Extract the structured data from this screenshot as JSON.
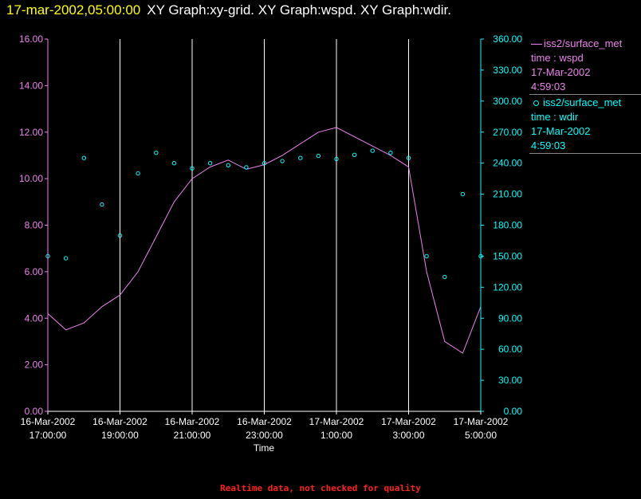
{
  "header": {
    "timestamp": "17-mar-2002,05:00:00",
    "graphs": "XY Graph:xy-grid.  XY Graph:wspd.  XY Graph:wdir."
  },
  "footer": {
    "note": "Realtime data, not checked for quality"
  },
  "legend": {
    "wspd": {
      "source": "iss2/surface_met",
      "variable": "time : wspd",
      "date": "17-Mar-2002",
      "time": "4:59:03"
    },
    "wdir": {
      "source": "iss2/surface_met",
      "variable": "time : wdir",
      "date": "17-Mar-2002",
      "time": "4:59:03"
    }
  },
  "colors": {
    "background": "#000000",
    "wspd": "#ee82ee",
    "wdir": "#00ffff",
    "grid": "#ffffff",
    "axis_left": "#ee82ee",
    "axis_right": "#00ffff"
  },
  "chart_data": {
    "type": "line",
    "xlabel": "Time",
    "xlim": [
      "2002-03-16T17:00:00",
      "2002-03-17T05:00:00"
    ],
    "x_ticks": [
      {
        "date": "16-Mar-2002",
        "time": "17:00:00"
      },
      {
        "date": "16-Mar-2002",
        "time": "19:00:00"
      },
      {
        "date": "16-Mar-2002",
        "time": "21:00:00"
      },
      {
        "date": "16-Mar-2002",
        "time": "23:00:00"
      },
      {
        "date": "17-Mar-2002",
        "time": "1:00:00"
      },
      {
        "date": "17-Mar-2002",
        "time": "3:00:00"
      },
      {
        "date": "17-Mar-2002",
        "time": "5:00:00"
      }
    ],
    "y_left": {
      "ylim": [
        0,
        16
      ],
      "ticks": [
        "0.00",
        "2.00",
        "4.00",
        "6.00",
        "8.00",
        "10.00",
        "12.00",
        "14.00",
        "16.00"
      ]
    },
    "y_right": {
      "ylim": [
        0,
        360
      ],
      "ticks": [
        "0.00",
        "30.00",
        "60.00",
        "90.00",
        "120.00",
        "150.00",
        "180.00",
        "210.00",
        "240.00",
        "270.00",
        "300.00",
        "330.00",
        "360.00"
      ]
    },
    "grid": {
      "vertical": true,
      "horizontal": false
    },
    "legend_position": "right",
    "series": [
      {
        "name": "iss2/surface_met time : wspd",
        "kind": "line",
        "axis": "left",
        "time": [
          "2002-03-16T17:00:00",
          "2002-03-16T17:30:00",
          "2002-03-16T18:00:00",
          "2002-03-16T18:30:00",
          "2002-03-16T19:00:00",
          "2002-03-16T19:30:00",
          "2002-03-16T20:00:00",
          "2002-03-16T20:30:00",
          "2002-03-16T21:00:00",
          "2002-03-16T21:30:00",
          "2002-03-16T22:00:00",
          "2002-03-16T22:30:00",
          "2002-03-16T23:00:00",
          "2002-03-16T23:30:00",
          "2002-03-17T00:00:00",
          "2002-03-17T00:30:00",
          "2002-03-17T01:00:00",
          "2002-03-17T01:30:00",
          "2002-03-17T02:00:00",
          "2002-03-17T02:30:00",
          "2002-03-17T03:00:00",
          "2002-03-17T03:30:00",
          "2002-03-17T04:00:00",
          "2002-03-17T04:30:00",
          "2002-03-17T05:00:00"
        ],
        "values": [
          4.2,
          3.5,
          3.8,
          4.5,
          5.0,
          6.0,
          7.5,
          9.0,
          10.0,
          10.5,
          10.8,
          10.4,
          10.6,
          11.0,
          11.5,
          12.0,
          12.2,
          11.8,
          11.4,
          11.0,
          10.5,
          6.0,
          3.0,
          2.5,
          4.5
        ]
      },
      {
        "name": "iss2/surface_met time : wdir",
        "kind": "scatter",
        "axis": "right",
        "time": [
          "2002-03-16T17:00:00",
          "2002-03-16T17:30:00",
          "2002-03-16T18:00:00",
          "2002-03-16T18:30:00",
          "2002-03-16T19:00:00",
          "2002-03-16T19:30:00",
          "2002-03-16T20:00:00",
          "2002-03-16T20:30:00",
          "2002-03-16T21:00:00",
          "2002-03-16T21:30:00",
          "2002-03-16T22:00:00",
          "2002-03-16T22:30:00",
          "2002-03-16T23:00:00",
          "2002-03-16T23:30:00",
          "2002-03-17T00:00:00",
          "2002-03-17T00:30:00",
          "2002-03-17T01:00:00",
          "2002-03-17T01:30:00",
          "2002-03-17T02:00:00",
          "2002-03-17T02:30:00",
          "2002-03-17T03:00:00",
          "2002-03-17T03:30:00",
          "2002-03-17T04:00:00",
          "2002-03-17T04:30:00",
          "2002-03-17T05:00:00"
        ],
        "values": [
          150,
          148,
          245,
          200,
          170,
          230,
          250,
          240,
          235,
          240,
          238,
          236,
          240,
          242,
          245,
          247,
          244,
          248,
          252,
          250,
          245,
          150,
          130,
          210,
          150
        ]
      }
    ]
  }
}
